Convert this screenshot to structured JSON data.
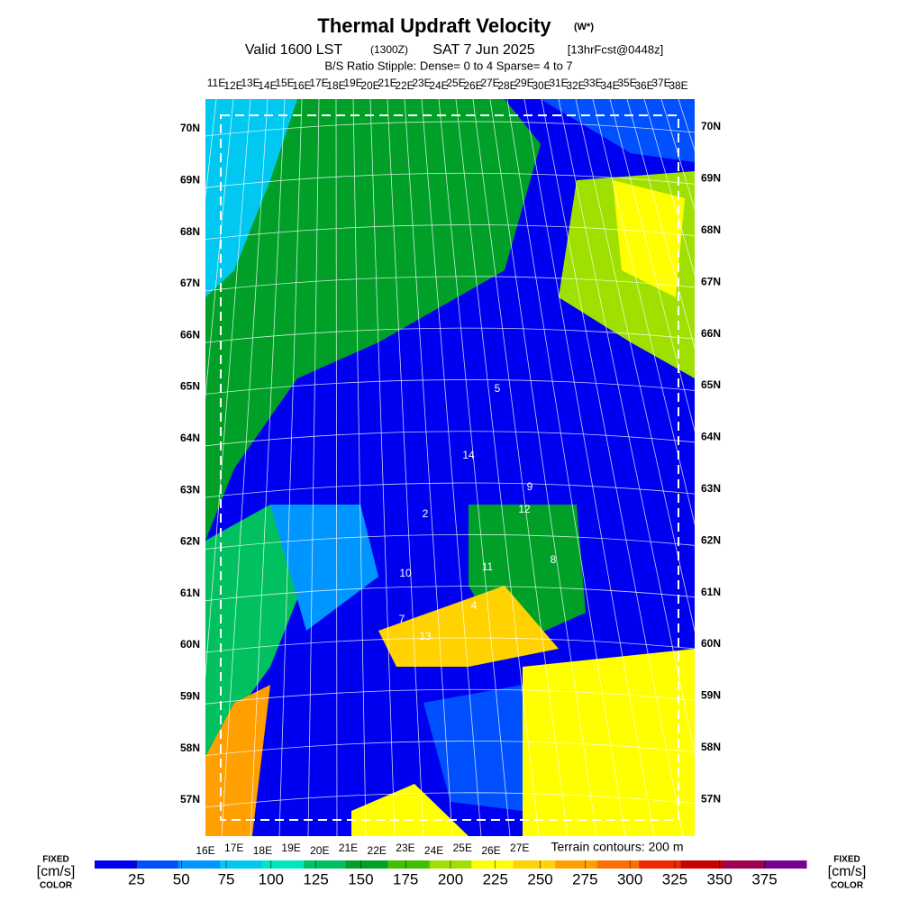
{
  "header": {
    "title": "Thermal Updraft Velocity",
    "title_unit": "(W*)",
    "valid": "Valid 1600 LST",
    "zulu": "(1300Z)",
    "date": "SAT 7 Jun 2025",
    "forecast": "[13hrFcst@0448z]",
    "stipple": "B/S Ratio Stipple:  Dense= 0 to 4  Sparse= 4 to 7"
  },
  "map": {
    "top_lon_labels": [
      "11E",
      "12E",
      "13E",
      "14E",
      "15E",
      "16E",
      "17E",
      "18E",
      "19E",
      "20E",
      "21E",
      "22E",
      "23E",
      "24E",
      "25E",
      "26E",
      "27E",
      "28E",
      "29E",
      "30E",
      "31E",
      "32E",
      "33E",
      "34E",
      "35E",
      "36E",
      "37E",
      "38E"
    ],
    "bottom_lon_labels": [
      "16E",
      "17E",
      "18E",
      "19E",
      "20E",
      "21E",
      "22E",
      "23E",
      "24E",
      "25E",
      "26E",
      "27E"
    ],
    "left_lat_labels": [
      "70N",
      "69N",
      "68N",
      "67N",
      "66N",
      "65N",
      "64N",
      "63N",
      "62N",
      "61N",
      "60N",
      "59N",
      "58N",
      "57N"
    ],
    "right_lat_labels": [
      "70N",
      "69N",
      "68N",
      "67N",
      "66N",
      "65N",
      "64N",
      "63N",
      "62N",
      "61N",
      "60N",
      "59N",
      "58N",
      "57N"
    ],
    "point_labels": [
      "5",
      "14",
      "9",
      "12",
      "2",
      "10",
      "11",
      "8",
      "4",
      "7",
      "13"
    ],
    "terrain_note": "Terrain contours: 200 m"
  },
  "colorbar": {
    "left_top": "FIXED",
    "left_unit": "[cm/s]",
    "left_bottom": "COLOR",
    "right_top": "FIXED",
    "right_unit": "[cm/s]",
    "right_bottom": "COLOR",
    "ticks": [
      25,
      50,
      75,
      100,
      125,
      150,
      175,
      200,
      225,
      250,
      275,
      300,
      325,
      350,
      375
    ],
    "colors": [
      "#0000f0",
      "#0050ff",
      "#0096ff",
      "#00c8f0",
      "#00e6c0",
      "#00c060",
      "#00a028",
      "#40c000",
      "#a0e000",
      "#ffff00",
      "#ffd200",
      "#ffa000",
      "#ff6e00",
      "#f02800",
      "#c80000",
      "#a00050",
      "#780090"
    ]
  }
}
